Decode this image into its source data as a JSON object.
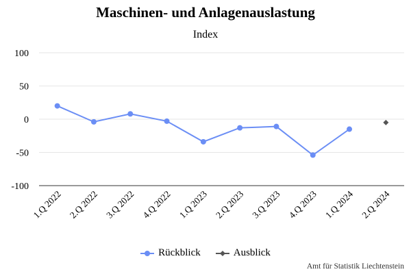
{
  "chart_data": {
    "type": "line",
    "title": "Maschinen- und Anlagenauslastung",
    "subtitle": "Index",
    "xlabel": "",
    "ylabel": "",
    "categories": [
      "1.Q 2022",
      "2.Q 2022",
      "3.Q 2022",
      "4.Q 2022",
      "1.Q 2023",
      "2.Q 2023",
      "3.Q 2023",
      "4.Q 2023",
      "1.Q 2024",
      "2.Q 2024"
    ],
    "ylim": [
      -100,
      100
    ],
    "yticks": [
      100,
      50,
      0,
      -50,
      -100
    ],
    "grid": true,
    "legend_position": "bottom",
    "series": [
      {
        "name": "Rückblick",
        "color": "#6b8ef5",
        "marker": "circle",
        "values": [
          20,
          -4,
          8,
          -3,
          -34,
          -13,
          -11,
          -54,
          -15,
          null
        ]
      },
      {
        "name": "Ausblick",
        "color": "#555555",
        "marker": "diamond",
        "values": [
          null,
          null,
          null,
          null,
          null,
          null,
          null,
          null,
          null,
          -5
        ]
      }
    ],
    "credit": "Amt für Statistik Liechtenstein"
  }
}
